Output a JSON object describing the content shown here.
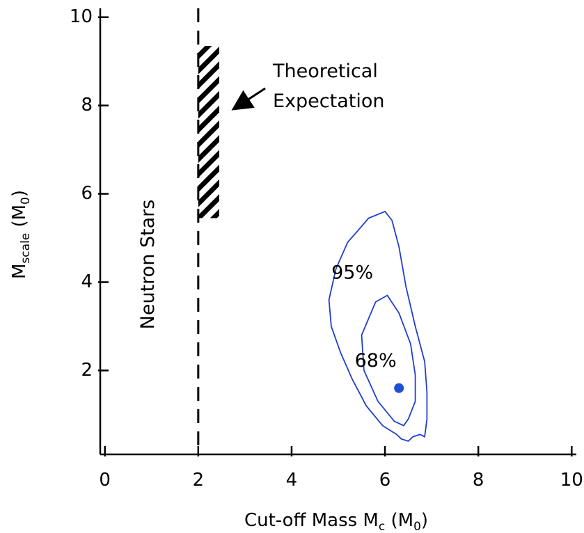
{
  "chart_data": {
    "type": "line",
    "xlabel": {
      "main": "Cut-off Mass M",
      "sub": "c",
      "suffix_main": " (M",
      "suffix_sub": "0",
      "suffix_end": ")"
    },
    "ylabel": {
      "main": "M",
      "sub": "scale",
      "suffix_main": " (M",
      "suffix_sub": "0",
      "suffix_end": ")"
    },
    "xlim": [
      -0.1,
      10.1
    ],
    "ylim": [
      0.1,
      10.2
    ],
    "x_ticks": [
      0,
      2,
      4,
      6,
      8,
      10
    ],
    "y_ticks": [
      2,
      4,
      6,
      8,
      10
    ],
    "x_tick_labels": [
      "0",
      "2",
      "4",
      "6",
      "8",
      "10"
    ],
    "y_tick_labels": [
      "2",
      "4",
      "6",
      "8",
      "10"
    ],
    "grid": false,
    "colors": {
      "contour": "#1f3fcf",
      "best_fit": "#1f4fd6",
      "axes": "#000000"
    },
    "series": [
      {
        "name": "95%",
        "style": "contour",
        "points": [
          [
            6.0,
            5.6
          ],
          [
            5.65,
            5.45
          ],
          [
            5.2,
            4.9
          ],
          [
            4.95,
            4.3
          ],
          [
            4.8,
            3.6
          ],
          [
            4.85,
            3.0
          ],
          [
            5.05,
            2.4
          ],
          [
            5.3,
            1.8
          ],
          [
            5.6,
            1.2
          ],
          [
            5.95,
            0.75
          ],
          [
            6.25,
            0.55
          ],
          [
            6.35,
            0.45
          ],
          [
            6.5,
            0.4
          ],
          [
            6.6,
            0.5
          ],
          [
            6.75,
            0.55
          ],
          [
            6.85,
            0.5
          ],
          [
            6.9,
            0.9
          ],
          [
            6.9,
            1.5
          ],
          [
            6.85,
            2.2
          ],
          [
            6.65,
            3.0
          ],
          [
            6.45,
            3.9
          ],
          [
            6.3,
            4.8
          ],
          [
            6.15,
            5.4
          ],
          [
            6.0,
            5.6
          ]
        ]
      },
      {
        "name": "68%",
        "style": "contour",
        "points": [
          [
            6.05,
            3.7
          ],
          [
            5.8,
            3.55
          ],
          [
            5.5,
            2.8
          ],
          [
            5.55,
            2.0
          ],
          [
            5.85,
            1.3
          ],
          [
            6.2,
            0.85
          ],
          [
            6.4,
            0.75
          ],
          [
            6.5,
            0.9
          ],
          [
            6.65,
            1.3
          ],
          [
            6.65,
            1.9
          ],
          [
            6.55,
            2.6
          ],
          [
            6.3,
            3.3
          ],
          [
            6.05,
            3.7
          ]
        ]
      }
    ],
    "best_fit": {
      "x": 6.3,
      "y": 1.6
    },
    "neutron_star_limit": {
      "x": 2.0,
      "label": "Neutron Stars"
    },
    "theoretical_band": {
      "x": [
        2.0,
        2.45
      ],
      "y": [
        5.45,
        9.35
      ],
      "label_lines": [
        "Theoretical",
        "Expectation"
      ]
    },
    "contour_labels": [
      {
        "text": "95%",
        "x": 5.3,
        "y": 4.2
      },
      {
        "text": "68%",
        "x": 5.8,
        "y": 2.2
      }
    ]
  }
}
